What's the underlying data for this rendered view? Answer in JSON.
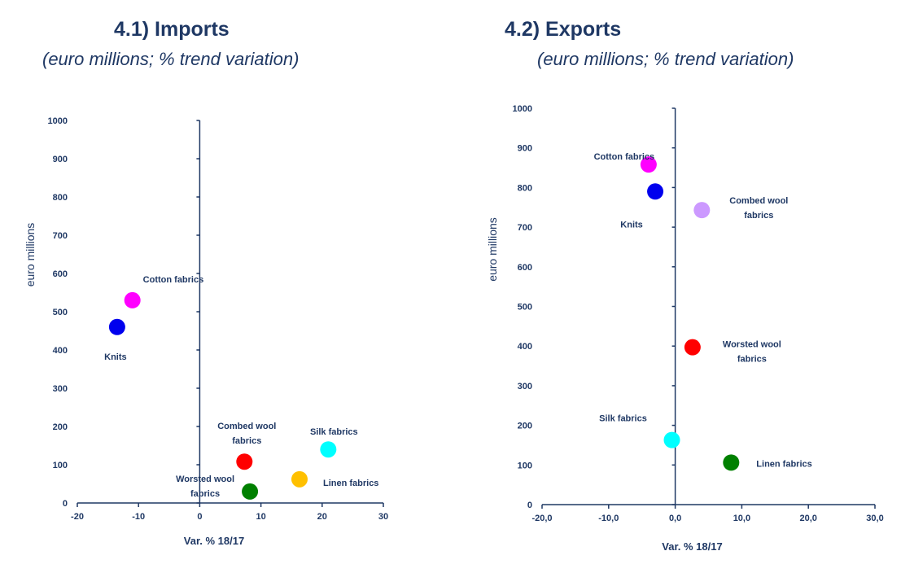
{
  "chart_data": [
    {
      "type": "scatter",
      "title": "4.1) Imports",
      "subtitle": "(euro millions; % trend variation)",
      "xlabel": "Var. % 18/17",
      "ylabel": "euro millions",
      "xlim": [
        -20,
        30
      ],
      "ylim": [
        0,
        1000
      ],
      "xticks": [
        "-20",
        "-10",
        "0",
        "10",
        "20",
        "30"
      ],
      "yticks": [
        "0",
        "100",
        "200",
        "300",
        "400",
        "500",
        "600",
        "700",
        "800",
        "900",
        "1000"
      ],
      "points": [
        {
          "label": "Cotton fabrics",
          "x": -11,
          "y": 530,
          "color": "#ff00ff"
        },
        {
          "label": "Knits",
          "x": -13.5,
          "y": 460,
          "color": "#0000ee"
        },
        {
          "label": "Combed wool fabrics",
          "x": 7.3,
          "y": 108,
          "color": "#ff0000"
        },
        {
          "label": "Silk fabrics",
          "x": 21,
          "y": 140,
          "color": "#00ffff"
        },
        {
          "label": "Linen fabrics",
          "x": 16.3,
          "y": 62,
          "color": "#ffc000"
        },
        {
          "label": "Worsted wool fabrics",
          "x": 8.2,
          "y": 30,
          "color": "#008000"
        }
      ]
    },
    {
      "type": "scatter",
      "title": "4.2) Exports",
      "subtitle": "(euro millions; % trend variation)",
      "xlabel": "Var. % 18/17",
      "ylabel": "euro millions",
      "xlim": [
        -20,
        30
      ],
      "ylim": [
        0,
        1000
      ],
      "xticks": [
        "-20,0",
        "-10,0",
        "0,0",
        "10,0",
        "20,0",
        "30,0"
      ],
      "yticks": [
        "0",
        "100",
        "200",
        "300",
        "400",
        "500",
        "600",
        "700",
        "800",
        "900",
        "1000"
      ],
      "points": [
        {
          "label": "Cotton fabrics",
          "x": -4,
          "y": 858,
          "color": "#ff00ff"
        },
        {
          "label": "Knits",
          "x": -3,
          "y": 790,
          "color": "#0000ee"
        },
        {
          "label": "Combed wool fabrics",
          "x": 4,
          "y": 743,
          "color": "#cc99ff"
        },
        {
          "label": "Worsted wool fabrics",
          "x": 2.6,
          "y": 397,
          "color": "#ff0000"
        },
        {
          "label": "Silk fabrics",
          "x": -0.5,
          "y": 163,
          "color": "#00ffff"
        },
        {
          "label": "Linen fabrics",
          "x": 8.4,
          "y": 106,
          "color": "#008000"
        }
      ]
    }
  ]
}
